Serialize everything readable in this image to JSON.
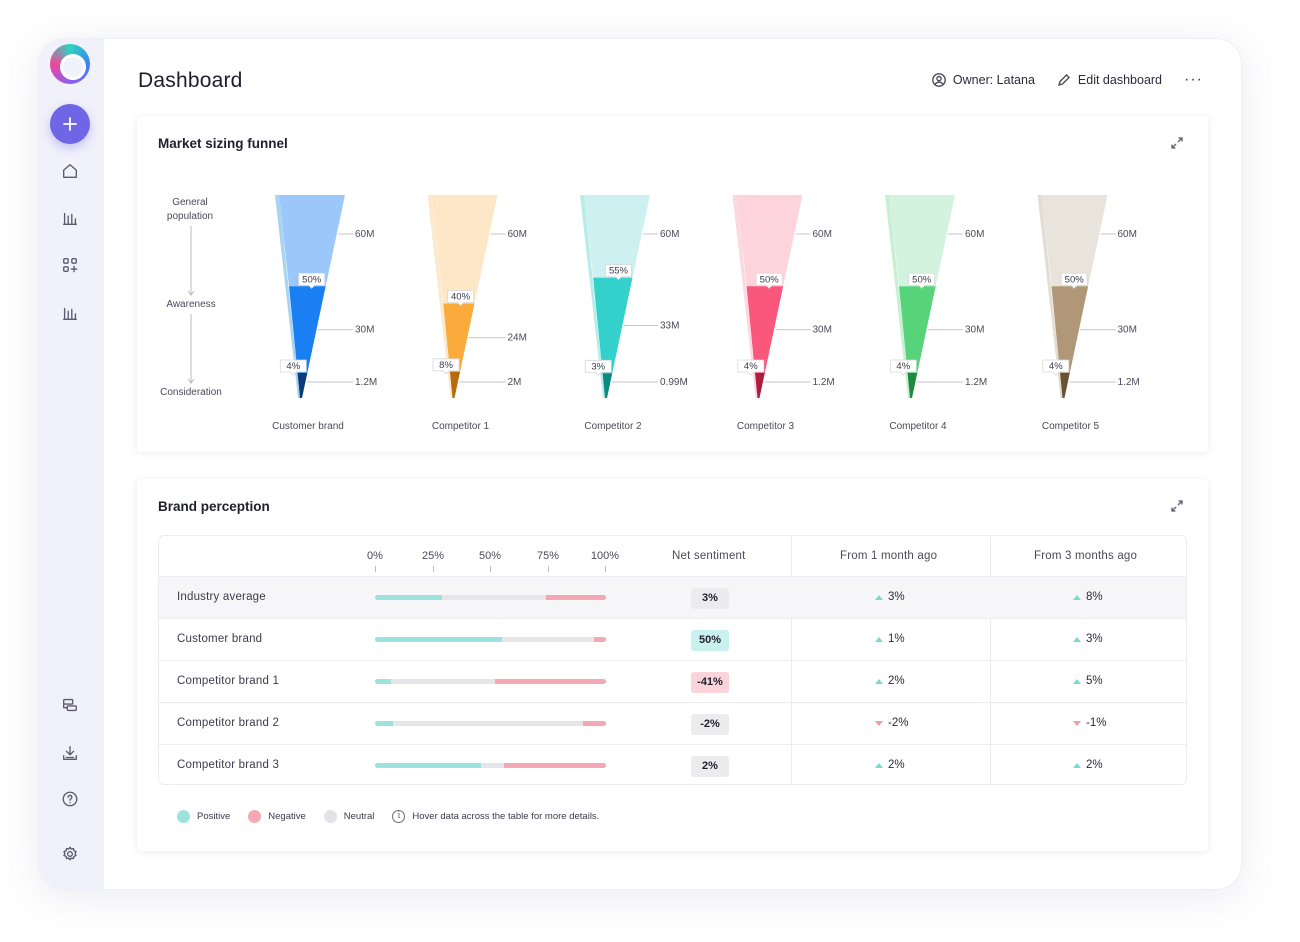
{
  "header": {
    "title": "Dashboard",
    "owner_label": "Owner: Latana",
    "edit_label": "Edit dashboard",
    "more_label": "···"
  },
  "sidebar": {
    "items": [
      {
        "name": "add",
        "icon": "plus-icon"
      },
      {
        "name": "home",
        "icon": "home-icon"
      },
      {
        "name": "charts",
        "icon": "bar-chart-icon"
      },
      {
        "name": "widgets",
        "icon": "grid-plus-icon"
      },
      {
        "name": "reports",
        "icon": "bar-chart-icon"
      },
      {
        "name": "dashboards",
        "icon": "layers-icon"
      },
      {
        "name": "download",
        "icon": "download-icon"
      },
      {
        "name": "help",
        "icon": "help-icon"
      },
      {
        "name": "settings",
        "icon": "gear-icon"
      }
    ]
  },
  "funnel_card": {
    "title": "Market sizing funnel",
    "stage_labels": [
      "General population",
      "Awareness",
      "Consideration"
    ]
  },
  "perception_card": {
    "title": "Brand perception",
    "columns": {
      "net": "Net sentiment",
      "m1": "From 1 month ago",
      "m3": "From 3 months ago"
    },
    "scale_ticks": [
      "0%",
      "25%",
      "50%",
      "75%",
      "100%"
    ],
    "rows": [
      {
        "label": "Industry average",
        "positive": 29,
        "negative": 26,
        "net": "3%",
        "net_kind": "neutral",
        "m1": "3%",
        "m1_dir": "up",
        "m3": "8%",
        "m3_dir": "up"
      },
      {
        "label": "Customer brand",
        "positive": 55,
        "negative": 5,
        "net": "50%",
        "net_kind": "positive",
        "m1": "1%",
        "m1_dir": "up",
        "m3": "3%",
        "m3_dir": "up"
      },
      {
        "label": "Competitor brand 1",
        "positive": 7,
        "negative": 48,
        "net": "-41%",
        "net_kind": "negative",
        "m1": "2%",
        "m1_dir": "up",
        "m3": "5%",
        "m3_dir": "up"
      },
      {
        "label": "Competitor brand 2",
        "positive": 8,
        "negative": 10,
        "net": "-2%",
        "net_kind": "neutral",
        "m1": "-2%",
        "m1_dir": "down",
        "m3": "-1%",
        "m3_dir": "down"
      },
      {
        "label": "Competitor brand 3",
        "positive": 46,
        "negative": 44,
        "net": "2%",
        "net_kind": "neutral",
        "m1": "2%",
        "m1_dir": "up",
        "m3": "2%",
        "m3_dir": "up"
      }
    ],
    "legend": {
      "positive": "Positive",
      "negative": "Negative",
      "neutral": "Neutral",
      "hint": "Hover data across the table for more details."
    }
  },
  "colors": {
    "accent": "#6e66e5",
    "positive": "#9ce3e0",
    "negative": "#f4a8b4",
    "neutral": "#e6e6ea"
  },
  "chart_data": {
    "type": "funnel",
    "title": "Market sizing funnel",
    "stages": [
      "General population",
      "Awareness",
      "Consideration"
    ],
    "series": [
      {
        "name": "Customer brand",
        "values": [
          "60M",
          "30M",
          "1.2M"
        ],
        "rates": [
          "50%",
          "4%"
        ],
        "colors": [
          "#9cc7fb",
          "#1a7ff2",
          "#0d3b7a"
        ],
        "rim": "#a8d4f0"
      },
      {
        "name": "Competitor 1",
        "values": [
          "60M",
          "24M",
          "2M"
        ],
        "rates": [
          "40%",
          "8%"
        ],
        "colors": [
          "#fde7c6",
          "#fbab3b",
          "#b86b0c"
        ],
        "rim": "#fbe9cf"
      },
      {
        "name": "Competitor 2",
        "values": [
          "60M",
          "33M",
          "0.99M"
        ],
        "rates": [
          "55%",
          "3%"
        ],
        "colors": [
          "#cdf1f1",
          "#33d0cc",
          "#0d8a80"
        ],
        "rim": "#b9ece9"
      },
      {
        "name": "Competitor 3",
        "values": [
          "60M",
          "30M",
          "1.2M"
        ],
        "rates": [
          "50%",
          "4%"
        ],
        "colors": [
          "#fdd3dc",
          "#f9577b",
          "#b01c3e"
        ],
        "rim": "#fcd9e0"
      },
      {
        "name": "Competitor 4",
        "values": [
          "60M",
          "30M",
          "1.2M"
        ],
        "rates": [
          "50%",
          "4%"
        ],
        "colors": [
          "#d3f3de",
          "#57d37a",
          "#1f8a3d"
        ],
        "rim": "#c7efd4"
      },
      {
        "name": "Competitor 5",
        "values": [
          "60M",
          "30M",
          "1.2M"
        ],
        "rates": [
          "50%",
          "4%"
        ],
        "colors": [
          "#e8e3db",
          "#b09778",
          "#6a5232"
        ],
        "rim": "#e3ddd3"
      }
    ]
  }
}
